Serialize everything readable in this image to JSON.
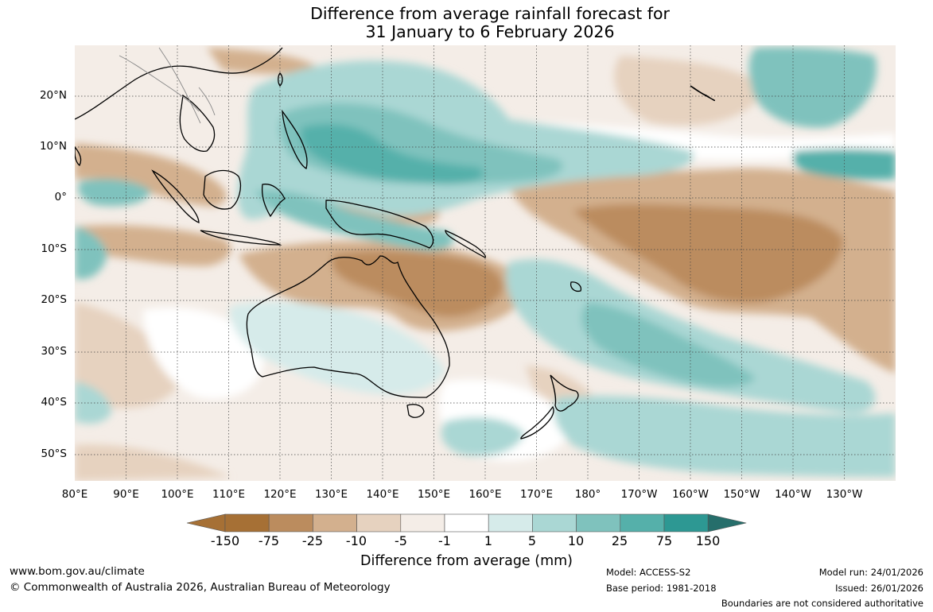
{
  "title": {
    "line1": "Difference from average rainfall forecast for",
    "line2": "31 January to 6 February 2026"
  },
  "axes": {
    "lat_labels": [
      "20°N",
      "10°N",
      "0°",
      "10°S",
      "20°S",
      "30°S",
      "40°S",
      "50°S"
    ],
    "lon_labels": [
      "80°E",
      "90°E",
      "100°E",
      "110°E",
      "120°E",
      "130°E",
      "140°E",
      "150°E",
      "160°E",
      "170°E",
      "180°",
      "170°W",
      "160°W",
      "150°W",
      "140°W",
      "130°W"
    ],
    "lat_range": [
      -55,
      30
    ],
    "lon_range": [
      80,
      240
    ],
    "grid": "dotted"
  },
  "colorbar": {
    "title": "Difference from average (mm)",
    "tick_labels": [
      "-150",
      "-75",
      "-25",
      "-10",
      "-5",
      "-1",
      "1",
      "5",
      "10",
      "25",
      "75",
      "150"
    ],
    "colors": [
      "#a67035",
      "#bb8c5e",
      "#d3b08e",
      "#e6d2bf",
      "#f4ede7",
      "#ffffff",
      "#d6ebea",
      "#aad7d4",
      "#7fc2bd",
      "#55b0aa",
      "#2d9893",
      "#266e6b"
    ],
    "extend": "both"
  },
  "footer": {
    "website": "www.bom.gov.au/climate",
    "copyright": "© Commonwealth of Australia 2026, Australian Bureau of Meteorology",
    "model": "Model: ACCESS-S2",
    "base_period": "Base period: 1981-2018",
    "model_run": "Model run: 24/01/2026",
    "issued": "Issued: 26/01/2026",
    "disclaimer": "Boundaries are not considered authoritative"
  }
}
